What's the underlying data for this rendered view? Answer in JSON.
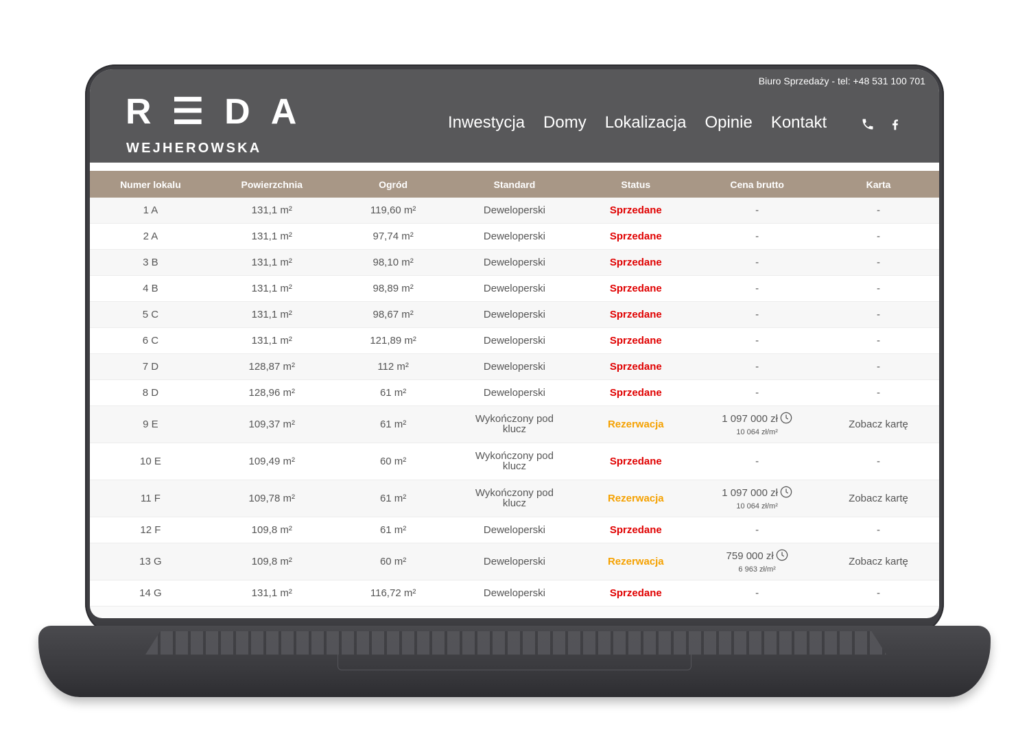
{
  "header": {
    "topline": "Biuro Sprzedaży - tel: +48 531 100 701",
    "logo_main": "R☰DA",
    "logo_sub": "WEJHEROWSKA",
    "nav": [
      "Inwestycja",
      "Domy",
      "Lokalizacja",
      "Opinie",
      "Kontakt"
    ],
    "icons": [
      "phone-icon",
      "facebook-icon"
    ]
  },
  "table": {
    "columns": [
      "Numer lokalu",
      "Powierzchnia",
      "Ogród",
      "Standard",
      "Status",
      "Cena brutto",
      "Karta"
    ],
    "rows": [
      {
        "num": "1 A",
        "area": "131,1 m²",
        "garden": "119,60 m²",
        "std": "Deweloperski",
        "status": "Sprzedane",
        "price": "-",
        "card": "-"
      },
      {
        "num": "2 A",
        "area": "131,1 m²",
        "garden": "97,74 m²",
        "std": "Deweloperski",
        "status": "Sprzedane",
        "price": "-",
        "card": "-"
      },
      {
        "num": "3 B",
        "area": "131,1 m²",
        "garden": "98,10 m²",
        "std": "Deweloperski",
        "status": "Sprzedane",
        "price": "-",
        "card": "-"
      },
      {
        "num": "4 B",
        "area": "131,1 m²",
        "garden": "98,89 m²",
        "std": "Deweloperski",
        "status": "Sprzedane",
        "price": "-",
        "card": "-"
      },
      {
        "num": "5 C",
        "area": "131,1 m²",
        "garden": "98,67 m²",
        "std": "Deweloperski",
        "status": "Sprzedane",
        "price": "-",
        "card": "-"
      },
      {
        "num": "6 C",
        "area": "131,1 m²",
        "garden": "121,89 m²",
        "std": "Deweloperski",
        "status": "Sprzedane",
        "price": "-",
        "card": "-"
      },
      {
        "num": "7 D",
        "area": "128,87 m²",
        "garden": "112 m²",
        "std": "Deweloperski",
        "status": "Sprzedane",
        "price": "-",
        "card": "-"
      },
      {
        "num": "8 D",
        "area": "128,96 m²",
        "garden": "61 m²",
        "std": "Deweloperski",
        "status": "Sprzedane",
        "price": "-",
        "card": "-"
      },
      {
        "num": "9 E",
        "area": "109,37 m²",
        "garden": "61 m²",
        "std": "Wykończony pod klucz",
        "status": "Rezerwacja",
        "price": "1 097 000 zł",
        "price_sub": "10 064 zł/m²",
        "card": "Zobacz kartę"
      },
      {
        "num": "10 E",
        "area": "109,49 m²",
        "garden": "60 m²",
        "std": "Wykończony pod klucz",
        "status": "Sprzedane",
        "price": "-",
        "card": "-"
      },
      {
        "num": "11 F",
        "area": "109,78 m²",
        "garden": "61 m²",
        "std": "Wykończony pod klucz",
        "status": "Rezerwacja",
        "price": "1 097 000 zł",
        "price_sub": "10 064 zł/m²",
        "card": "Zobacz kartę"
      },
      {
        "num": "12 F",
        "area": "109,8 m²",
        "garden": "61 m²",
        "std": "Deweloperski",
        "status": "Sprzedane",
        "price": "-",
        "card": "-"
      },
      {
        "num": "13 G",
        "area": "109,8 m²",
        "garden": "60 m²",
        "std": "Deweloperski",
        "status": "Rezerwacja",
        "price": "759 000 zł",
        "price_sub": "6 963 zł/m²",
        "card": "Zobacz kartę"
      },
      {
        "num": "14 G",
        "area": "131,1 m²",
        "garden": "116,72 m²",
        "std": "Deweloperski",
        "status": "Sprzedane",
        "price": "-",
        "card": "-"
      }
    ]
  },
  "colors": {
    "header_bg": "#58585a",
    "table_head_bg": "#a89786",
    "sold": "#e00000",
    "reserved": "#f5a100"
  }
}
